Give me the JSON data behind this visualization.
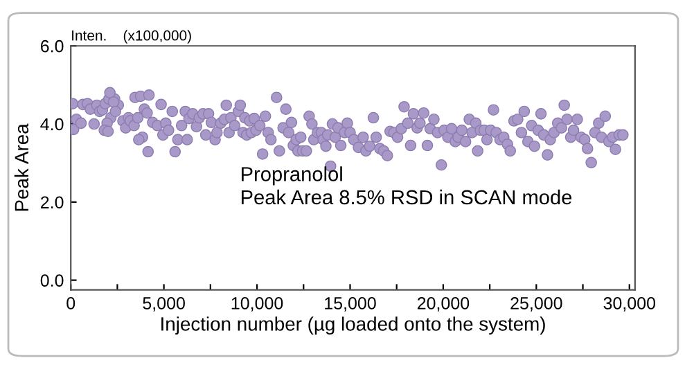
{
  "chart_data": {
    "type": "scatter",
    "xlabel": "Injection number (µg loaded onto the system)",
    "ylabel": "Peak Area",
    "annotations": [
      "Inten.    (x100,000)",
      "Propranolol\nPeak Area 8.5% RSD in SCAN mode"
    ],
    "xlim": [
      0,
      30300
    ],
    "ylim": [
      -0.25,
      6.0
    ],
    "xticks": [
      {
        "value": 0,
        "label": "0"
      },
      {
        "value": 2500,
        "label": null
      },
      {
        "value": 5000,
        "label": "5,000"
      },
      {
        "value": 7500,
        "label": null
      },
      {
        "value": 10000,
        "label": "10,000"
      },
      {
        "value": 12500,
        "label": null
      },
      {
        "value": 15000,
        "label": "15,000"
      },
      {
        "value": 17500,
        "label": null
      },
      {
        "value": 20000,
        "label": "20,000"
      },
      {
        "value": 22500,
        "label": null
      },
      {
        "value": 25000,
        "label": "25,000"
      },
      {
        "value": 27500,
        "label": null
      },
      {
        "value": 30000,
        "label": "30,000"
      }
    ],
    "yticks": [
      {
        "value": 0,
        "label": "0.0"
      },
      {
        "value": 2,
        "label": "2.0"
      },
      {
        "value": 4,
        "label": "4.0"
      },
      {
        "value": 6,
        "label": "6.0"
      }
    ],
    "grid": false,
    "legend": false,
    "marker": "circle",
    "series": [
      {
        "color": "#a899c8",
        "x": [
          100,
          150,
          300,
          550,
          650,
          900,
          1050,
          1250,
          1400,
          1550,
          1700,
          1850,
          2050,
          2150,
          2350,
          2550,
          1950,
          1800,
          2000,
          2100,
          2300,
          2400,
          2800,
          2950,
          3100,
          3200,
          3400,
          3600,
          3450,
          3750,
          3950,
          4100,
          4200,
          3850,
          3650,
          4150,
          4400,
          4650,
          4850,
          4950,
          5100,
          5250,
          5450,
          5600,
          5750,
          5950,
          6150,
          6250,
          6350,
          6550,
          6750,
          6900,
          7100,
          7250,
          7400,
          7550,
          7750,
          7850,
          8050,
          8250,
          8350,
          8500,
          8600,
          8800,
          9000,
          9100,
          9250,
          9350,
          9450,
          9600,
          9700,
          9850,
          9950,
          10150,
          10300,
          10450,
          10600,
          10750,
          11050,
          11200,
          11400,
          11550,
          11700,
          11850,
          11950,
          12100,
          12200,
          12350,
          12450,
          12650,
          12800,
          12950,
          13050,
          13250,
          13450,
          13550,
          13700,
          13800,
          13950,
          14050,
          14200,
          14350,
          14500,
          14700,
          14850,
          15000,
          15200,
          15450,
          15700,
          15850,
          16050,
          16250,
          16400,
          16600,
          16800,
          17000,
          17150,
          17350,
          17550,
          17750,
          17900,
          18100,
          18250,
          18400,
          18600,
          18750,
          18950,
          19150,
          19300,
          19500,
          19700,
          19900,
          20050,
          20250,
          20450,
          20650,
          20800,
          21000,
          21200,
          21400,
          21550,
          21750,
          21850,
          22000,
          22200,
          22350,
          22550,
          22700,
          22850,
          23050,
          23250,
          23450,
          23600,
          23800,
          24000,
          24200,
          24350,
          24550,
          24750,
          24900,
          25100,
          25250,
          25400,
          25600,
          25750,
          25950,
          26150,
          26350,
          26500,
          26650,
          26850,
          27000,
          27200,
          27400,
          27600,
          27750,
          27950,
          28150,
          28350,
          28500,
          28700,
          28900,
          29100,
          29250,
          29450,
          29650
        ],
        "values": [
          4.52,
          3.86,
          4.12,
          4.02,
          4.5,
          4.52,
          4.38,
          4.0,
          4.48,
          4.32,
          4.36,
          4.52,
          4.64,
          4.16,
          4.64,
          4.48,
          4.02,
          3.84,
          3.81,
          4.8,
          4.56,
          4.32,
          4.08,
          3.9,
          4.16,
          4.08,
          3.96,
          4.16,
          4.68,
          4.71,
          4.38,
          4.28,
          4.74,
          3.66,
          3.6,
          3.29,
          4.04,
          3.96,
          4.5,
          3.72,
          4.02,
          3.84,
          4.32,
          3.29,
          3.6,
          3.96,
          4.32,
          3.6,
          4.14,
          4.26,
          3.93,
          4.16,
          4.26,
          3.72,
          4.26,
          4.04,
          3.6,
          3.78,
          4.02,
          4.12,
          4.48,
          3.78,
          4.16,
          3.96,
          4.32,
          4.48,
          3.78,
          4.16,
          3.72,
          4.08,
          3.78,
          4.14,
          3.84,
          3.96,
          3.23,
          4.2,
          3.78,
          3.6,
          4.68,
          3.31,
          3.9,
          4.38,
          3.78,
          4.04,
          3.45,
          3.6,
          3.31,
          3.66,
          3.31,
          3.31,
          4.2,
          4.0,
          3.6,
          3.78,
          3.78,
          3.6,
          3.43,
          3.72,
          2.92,
          4.0,
          3.66,
          3.9,
          3.45,
          3.78,
          4.02,
          3.78,
          3.6,
          3.4,
          3.66,
          3.31,
          3.43,
          4.16,
          3.66,
          3.37,
          3.31,
          3.19,
          3.81,
          3.78,
          3.66,
          3.88,
          4.44,
          4.02,
          3.45,
          4.26,
          3.9,
          4.02,
          4.28,
          3.45,
          3.88,
          4.12,
          3.78,
          2.95,
          3.84,
          3.66,
          3.88,
          3.55,
          3.66,
          3.84,
          3.55,
          4.12,
          3.78,
          4.02,
          3.31,
          3.84,
          3.84,
          3.6,
          3.84,
          4.36,
          3.78,
          3.6,
          3.66,
          3.48,
          3.31,
          4.08,
          4.12,
          3.78,
          4.32,
          3.55,
          3.96,
          3.43,
          3.84,
          4.26,
          3.72,
          3.21,
          3.6,
          3.78,
          4.02,
          3.9,
          4.48,
          4.12,
          3.66,
          3.84,
          4.12,
          3.66,
          3.6,
          3.37,
          3.01,
          3.78,
          4.02,
          3.66,
          4.2,
          3.55,
          3.66,
          3.35,
          3.72,
          3.72
        ]
      }
    ]
  }
}
